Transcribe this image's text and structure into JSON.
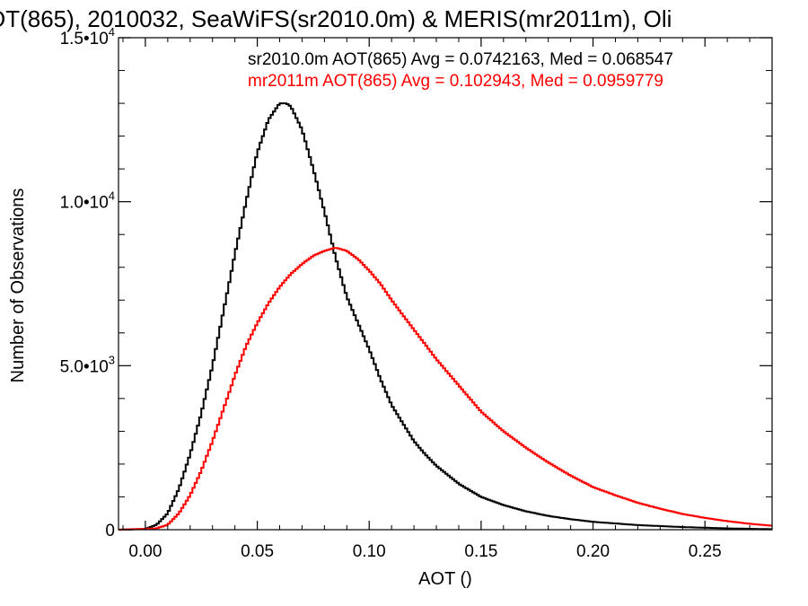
{
  "chart_data": {
    "type": "line",
    "step": true,
    "title": "OT(865), 2010032, SeaWiFS(sr2010.0m) & MERIS(mr2011m), Oli",
    "xlabel": "AOT ()",
    "ylabel": "Number of Observations",
    "xlim": [
      -0.012,
      0.28
    ],
    "ylim": [
      0,
      15000
    ],
    "x_ticks": [
      0.0,
      0.05,
      0.1,
      0.15,
      0.2,
      0.25
    ],
    "x_tick_labels": [
      "0.00",
      "0.05",
      "0.10",
      "0.15",
      "0.20",
      "0.25"
    ],
    "y_ticks": [
      0,
      5000,
      10000,
      15000
    ],
    "y_tick_labels": [
      {
        "mant": "0",
        "exp": ""
      },
      {
        "mant": "5.0•10",
        "exp": "3"
      },
      {
        "mant": "1.0•10",
        "exp": "4"
      },
      {
        "mant": "1.5•10",
        "exp": "4"
      }
    ],
    "grid": false,
    "annotations": [
      {
        "text": "sr2010.0m AOT(865) Avg = 0.0742163, Med = 0.068547",
        "color": "#000000"
      },
      {
        "text": "mr2011m AOT(865) Avg = 0.102943, Med = 0.0959779",
        "color": "#ff0000"
      }
    ],
    "series": [
      {
        "color": "#000000",
        "x": [
          -0.012,
          0.0,
          0.005,
          0.01,
          0.015,
          0.02,
          0.025,
          0.03,
          0.035,
          0.04,
          0.045,
          0.05,
          0.055,
          0.06,
          0.063,
          0.065,
          0.07,
          0.075,
          0.08,
          0.085,
          0.09,
          0.095,
          0.1,
          0.105,
          0.11,
          0.115,
          0.12,
          0.125,
          0.13,
          0.14,
          0.15,
          0.16,
          0.17,
          0.18,
          0.19,
          0.2,
          0.22,
          0.24,
          0.26,
          0.28
        ],
        "y": [
          0,
          20,
          150,
          500,
          1250,
          2300,
          3550,
          5000,
          6700,
          8400,
          10000,
          11500,
          12500,
          13000,
          13000,
          12900,
          12200,
          11000,
          9700,
          8300,
          7100,
          6300,
          5500,
          4600,
          3800,
          3250,
          2700,
          2300,
          1950,
          1400,
          1000,
          750,
          560,
          420,
          320,
          240,
          140,
          80,
          40,
          15
        ]
      },
      {
        "color": "#ff0000",
        "x": [
          -0.012,
          0.005,
          0.01,
          0.015,
          0.02,
          0.025,
          0.03,
          0.035,
          0.04,
          0.045,
          0.05,
          0.055,
          0.06,
          0.065,
          0.07,
          0.075,
          0.08,
          0.085,
          0.09,
          0.095,
          0.1,
          0.105,
          0.11,
          0.12,
          0.13,
          0.14,
          0.15,
          0.16,
          0.17,
          0.18,
          0.19,
          0.2,
          0.21,
          0.22,
          0.23,
          0.24,
          0.25,
          0.26,
          0.27,
          0.28
        ],
        "y": [
          0,
          40,
          150,
          500,
          1050,
          1800,
          2700,
          3700,
          4700,
          5600,
          6300,
          6900,
          7400,
          7800,
          8100,
          8350,
          8500,
          8600,
          8500,
          8250,
          7900,
          7500,
          7000,
          6100,
          5200,
          4400,
          3600,
          3000,
          2500,
          2050,
          1650,
          1300,
          1050,
          820,
          640,
          480,
          360,
          260,
          180,
          120
        ]
      }
    ]
  }
}
